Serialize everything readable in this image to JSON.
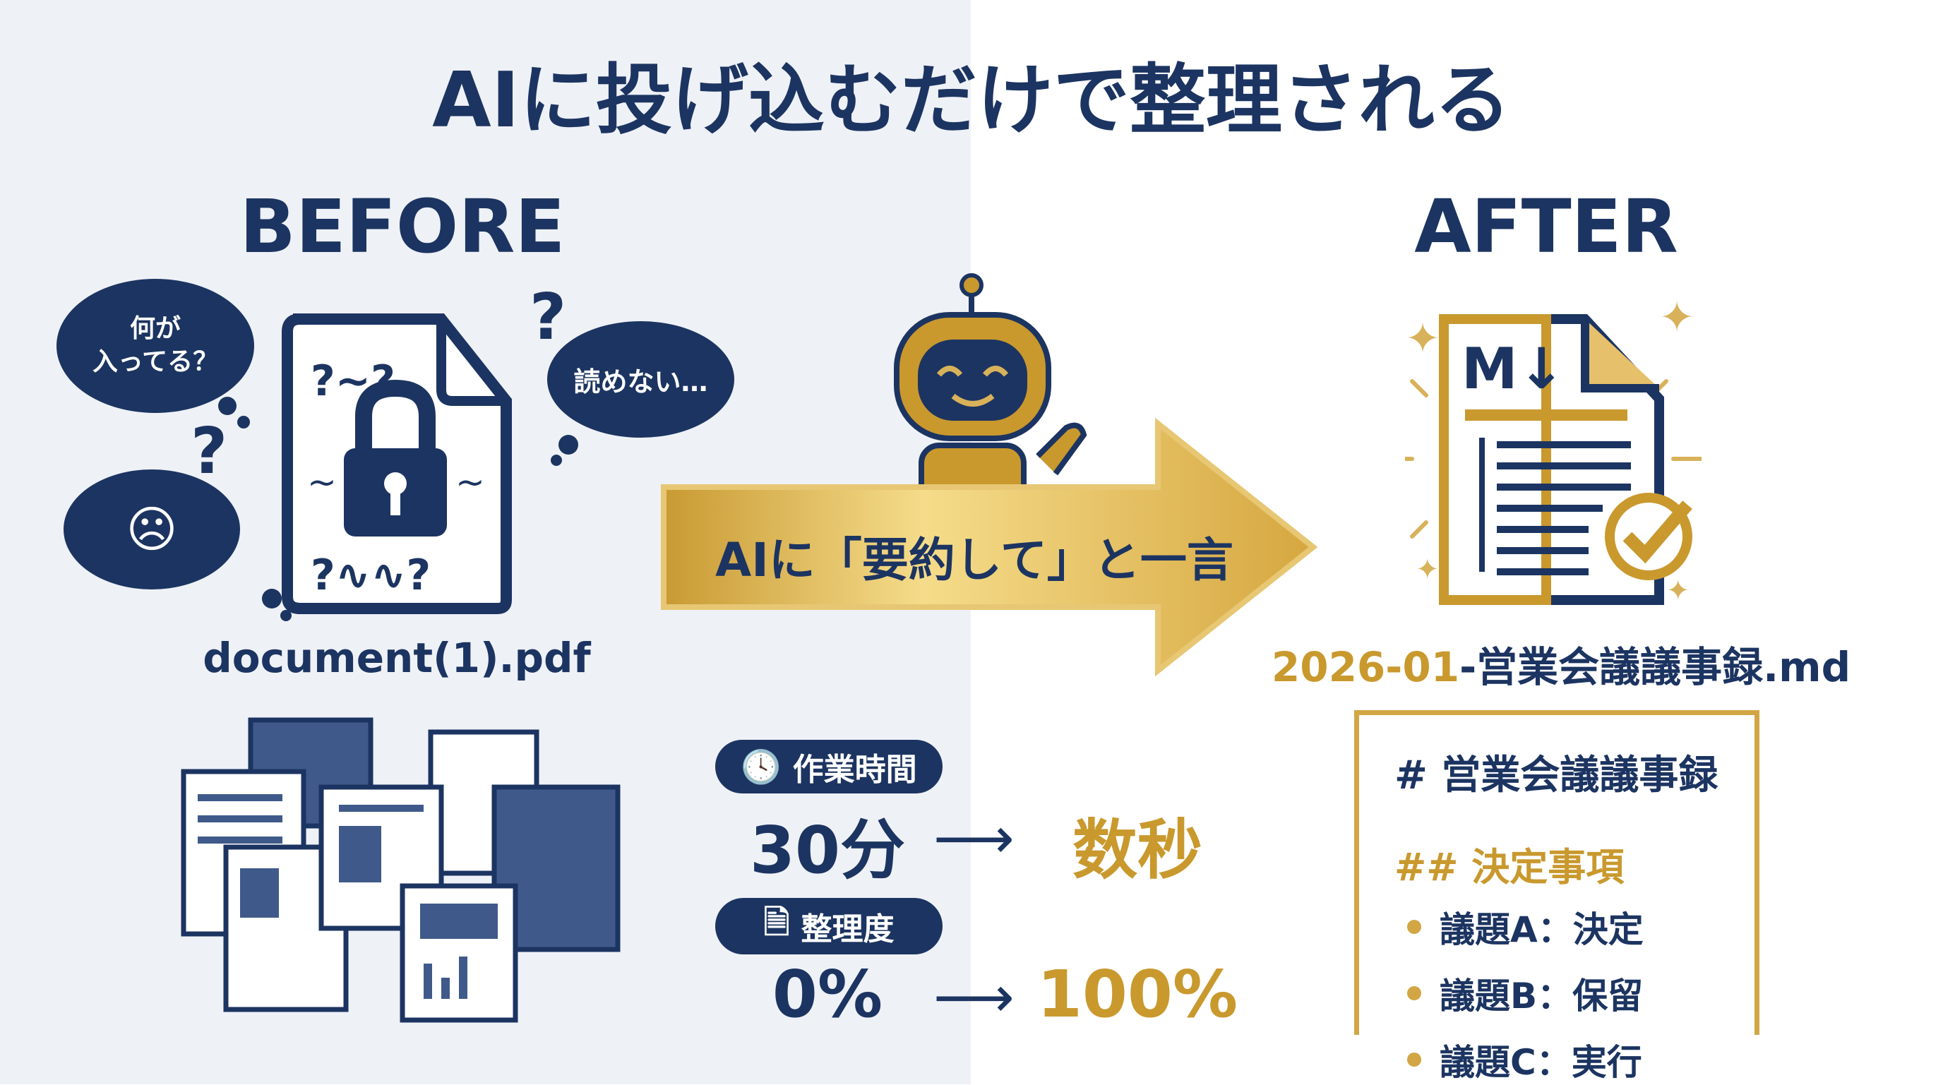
{
  "title": "AIに投げ込むだけで整理される",
  "before": {
    "heading": "BEFORE",
    "cloud_1": "何が\n入ってる？",
    "cloud_2": "読めない…",
    "filename": "document(1).pdf"
  },
  "after": {
    "heading": "AFTER",
    "doc_badge": "M↓",
    "filename_date": "2026-01",
    "filename_rest": "-営業会議議事録.md"
  },
  "arrow_label": "AIに「要約して」と一言",
  "metrics": [
    {
      "label": "作業時間",
      "icon": "clock-icon",
      "before": "30分",
      "after": "数秒"
    },
    {
      "label": "整理度",
      "icon": "document-icon",
      "before": "0%",
      "after": "100%"
    }
  ],
  "markdown": {
    "h1": "# 営業会議議事録",
    "h2": "## 決定事項",
    "items": [
      "議題A：決定",
      "議題B：保留",
      "議題C：実行"
    ]
  },
  "colors": {
    "navy": "#1c3461",
    "gold": "#c9992e",
    "left_bg": "#eef1f6"
  }
}
